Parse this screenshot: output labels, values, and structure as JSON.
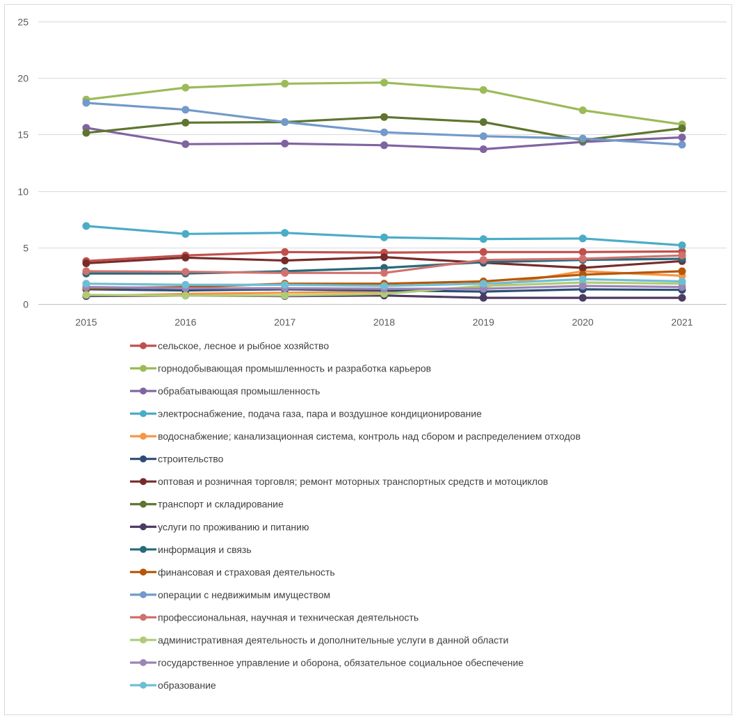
{
  "chart_data": {
    "type": "line",
    "title": "",
    "xlabel": "",
    "ylabel": "",
    "x": [
      "2015",
      "2016",
      "2017",
      "2018",
      "2019",
      "2020",
      "2021"
    ],
    "ylim": [
      0,
      25
    ],
    "yticks": [
      "0",
      "5",
      "10",
      "15",
      "20",
      "25"
    ],
    "grid": "horizontal",
    "legend_position": "bottom",
    "series": [
      {
        "name": "сельское, лесное и рыбное хозяйство",
        "color": "#C0504D",
        "values": [
          3.8,
          4.3,
          4.6,
          4.55,
          4.6,
          4.6,
          4.65
        ]
      },
      {
        "name": "горнодобывающая промышленность и разработка карьеров",
        "color": "#9BBB59",
        "values": [
          18.1,
          19.15,
          19.5,
          19.6,
          18.95,
          17.15,
          15.9
        ]
      },
      {
        "name": "обрабатывающая промышленность",
        "color": "#8064A2",
        "values": [
          15.6,
          14.15,
          14.2,
          14.05,
          13.7,
          14.35,
          14.75
        ]
      },
      {
        "name": "электроснабжение, подача газа, пара и воздушное кондиционирование",
        "color": "#4BACC6",
        "values": [
          6.9,
          6.2,
          6.3,
          5.9,
          5.75,
          5.8,
          5.2
        ]
      },
      {
        "name": "водоснабжение; канализационная система, контроль над сбором и распределением отходов",
        "color": "#F79646",
        "values": [
          0.7,
          0.9,
          1.0,
          1.1,
          1.5,
          2.9,
          2.5
        ]
      },
      {
        "name": "строительство",
        "color": "#2C4D75",
        "values": [
          1.3,
          1.2,
          1.3,
          1.2,
          1.1,
          1.3,
          1.25
        ]
      },
      {
        "name": "оптовая и розничная торговля; ремонт моторных транспортных средств и мотоциклов",
        "color": "#772C2A",
        "values": [
          3.6,
          4.1,
          3.85,
          4.15,
          3.65,
          3.2,
          3.8
        ]
      },
      {
        "name": "транспорт и складирование",
        "color": "#5F7530",
        "values": [
          15.15,
          16.05,
          16.1,
          16.55,
          16.1,
          14.5,
          15.55
        ]
      },
      {
        "name": "услуги по проживанию и питанию",
        "color": "#4D3B62",
        "values": [
          0.7,
          0.75,
          0.7,
          0.75,
          0.55,
          0.55,
          0.55
        ]
      },
      {
        "name": "информация и связь",
        "color": "#276A7C",
        "values": [
          2.7,
          2.7,
          2.9,
          3.2,
          3.7,
          3.9,
          4.0
        ]
      },
      {
        "name": "финансовая и страховая деятельность",
        "color": "#B65708",
        "values": [
          1.4,
          1.5,
          1.8,
          1.8,
          2.0,
          2.6,
          2.9
        ]
      },
      {
        "name": "операции с недвижимым имуществом",
        "color": "#729ACA",
        "values": [
          17.8,
          17.2,
          16.1,
          15.2,
          14.85,
          14.65,
          14.1
        ]
      },
      {
        "name": "профессиональная, научная и техническая деятельность",
        "color": "#D1716E",
        "values": [
          2.9,
          2.85,
          2.75,
          2.75,
          3.9,
          4.0,
          4.3
        ]
      },
      {
        "name": "административная деятельность и дополнительные услуги в данной области",
        "color": "#AFCB76",
        "values": [
          0.8,
          0.75,
          0.75,
          0.9,
          1.6,
          1.9,
          1.8
        ]
      },
      {
        "name": "государственное управление и оборона, обязательное социальное обеспечение",
        "color": "#9C85B7",
        "values": [
          1.5,
          1.4,
          1.4,
          1.35,
          1.35,
          1.6,
          1.5
        ]
      },
      {
        "name": "образование",
        "color": "#6FBED3",
        "values": [
          1.8,
          1.7,
          1.7,
          1.6,
          1.8,
          2.2,
          2.0
        ]
      }
    ]
  }
}
